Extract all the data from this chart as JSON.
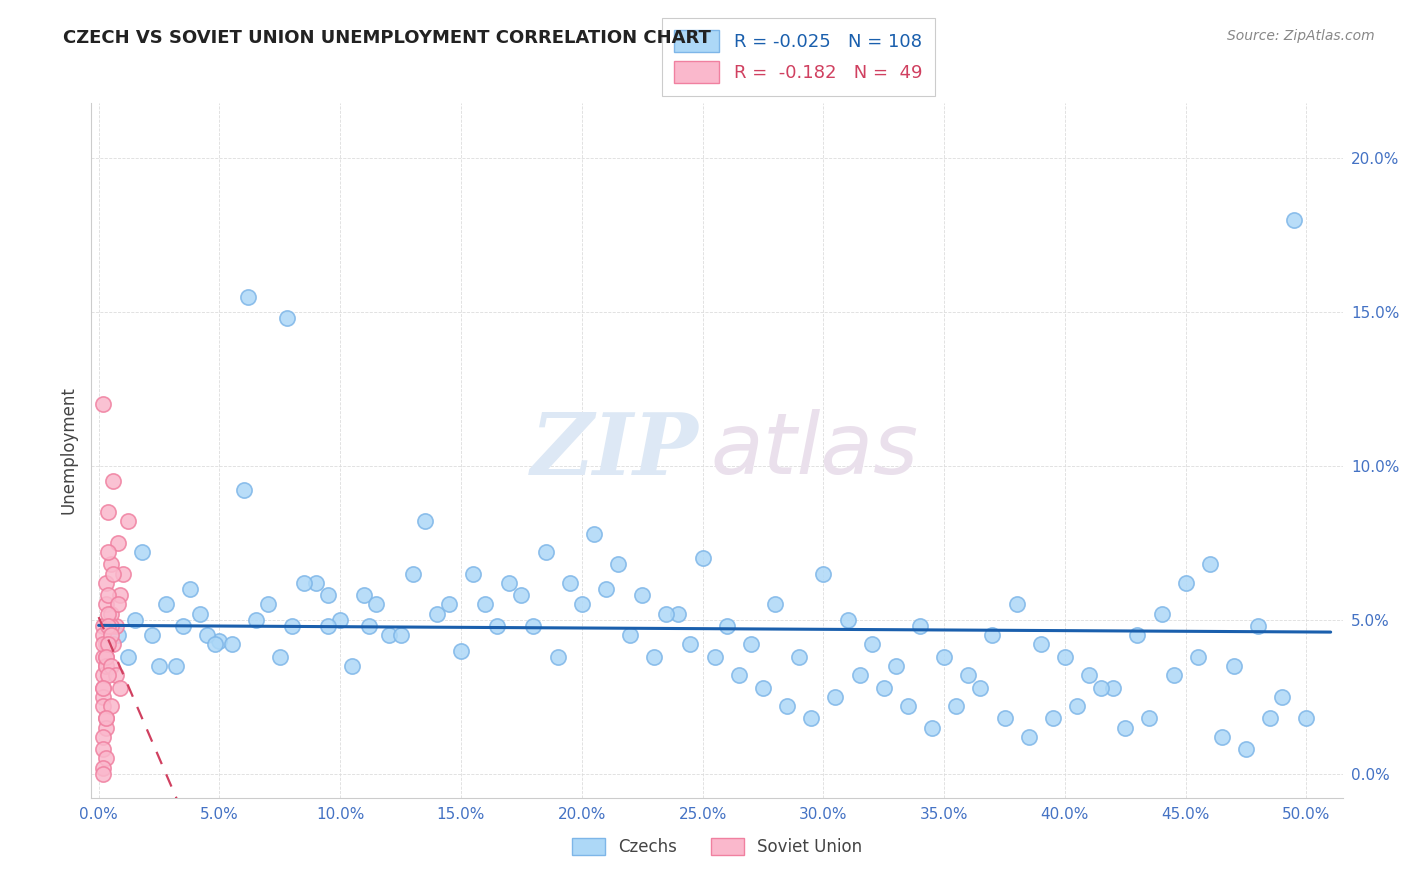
{
  "title": "CZECH VS SOVIET UNION UNEMPLOYMENT CORRELATION CHART",
  "source_text": "Source: ZipAtlas.com",
  "ylabel": "Unemployment",
  "xlim": [
    -0.003,
    0.515
  ],
  "ylim": [
    -0.008,
    0.218
  ],
  "xticks": [
    0.0,
    0.05,
    0.1,
    0.15,
    0.2,
    0.25,
    0.3,
    0.35,
    0.4,
    0.45,
    0.5
  ],
  "yticks": [
    0.0,
    0.05,
    0.1,
    0.15,
    0.2
  ],
  "czech_face_color": "#ADD8F7",
  "czech_edge_color": "#7EB6E8",
  "soviet_face_color": "#FAB8CC",
  "soviet_edge_color": "#F080A0",
  "czech_line_color": "#1A5FAD",
  "soviet_line_color": "#D04060",
  "legend_czech_label": "Czechs",
  "legend_soviet_label": "Soviet Union",
  "R_czech": -0.025,
  "N_czech": 108,
  "R_soviet": -0.182,
  "N_soviet": 49,
  "watermark_zip_color": "#E0E8F5",
  "watermark_atlas_color": "#E8E0E8",
  "background_color": "#ffffff",
  "grid_color": "#DDDDDD",
  "title_color": "#222222",
  "tick_label_color": "#4472C4",
  "axis_label_color": "#444444",
  "source_color": "#888888",
  "czech_x": [
    0.015,
    0.022,
    0.028,
    0.035,
    0.042,
    0.05,
    0.012,
    0.038,
    0.025,
    0.06,
    0.07,
    0.08,
    0.09,
    0.1,
    0.11,
    0.12,
    0.13,
    0.14,
    0.15,
    0.16,
    0.17,
    0.18,
    0.19,
    0.2,
    0.21,
    0.22,
    0.23,
    0.24,
    0.25,
    0.26,
    0.27,
    0.28,
    0.29,
    0.3,
    0.31,
    0.32,
    0.33,
    0.34,
    0.35,
    0.36,
    0.37,
    0.38,
    0.39,
    0.4,
    0.41,
    0.42,
    0.43,
    0.44,
    0.45,
    0.46,
    0.47,
    0.48,
    0.49,
    0.5,
    0.018,
    0.032,
    0.045,
    0.055,
    0.065,
    0.075,
    0.085,
    0.095,
    0.105,
    0.115,
    0.125,
    0.135,
    0.145,
    0.155,
    0.165,
    0.175,
    0.185,
    0.195,
    0.205,
    0.215,
    0.225,
    0.235,
    0.245,
    0.255,
    0.265,
    0.275,
    0.285,
    0.295,
    0.305,
    0.315,
    0.325,
    0.335,
    0.345,
    0.355,
    0.365,
    0.375,
    0.385,
    0.395,
    0.405,
    0.415,
    0.425,
    0.435,
    0.445,
    0.455,
    0.465,
    0.475,
    0.485,
    0.495,
    0.008,
    0.048,
    0.062,
    0.078,
    0.095,
    0.112
  ],
  "czech_y": [
    0.05,
    0.045,
    0.055,
    0.048,
    0.052,
    0.043,
    0.038,
    0.06,
    0.035,
    0.092,
    0.055,
    0.048,
    0.062,
    0.05,
    0.058,
    0.045,
    0.065,
    0.052,
    0.04,
    0.055,
    0.062,
    0.048,
    0.038,
    0.055,
    0.06,
    0.045,
    0.038,
    0.052,
    0.07,
    0.048,
    0.042,
    0.055,
    0.038,
    0.065,
    0.05,
    0.042,
    0.035,
    0.048,
    0.038,
    0.032,
    0.045,
    0.055,
    0.042,
    0.038,
    0.032,
    0.028,
    0.045,
    0.052,
    0.062,
    0.068,
    0.035,
    0.048,
    0.025,
    0.018,
    0.072,
    0.035,
    0.045,
    0.042,
    0.05,
    0.038,
    0.062,
    0.048,
    0.035,
    0.055,
    0.045,
    0.082,
    0.055,
    0.065,
    0.048,
    0.058,
    0.072,
    0.062,
    0.078,
    0.068,
    0.058,
    0.052,
    0.042,
    0.038,
    0.032,
    0.028,
    0.022,
    0.018,
    0.025,
    0.032,
    0.028,
    0.022,
    0.015,
    0.022,
    0.028,
    0.018,
    0.012,
    0.018,
    0.022,
    0.028,
    0.015,
    0.018,
    0.032,
    0.038,
    0.012,
    0.008,
    0.018,
    0.18,
    0.045,
    0.042,
    0.155,
    0.148,
    0.058,
    0.048
  ],
  "soviet_x": [
    0.002,
    0.004,
    0.006,
    0.008,
    0.01,
    0.012,
    0.003,
    0.005,
    0.007,
    0.009,
    0.002,
    0.004,
    0.006,
    0.003,
    0.005,
    0.002,
    0.004,
    0.006,
    0.008,
    0.003,
    0.005,
    0.002,
    0.004,
    0.003,
    0.002,
    0.004,
    0.003,
    0.002,
    0.005,
    0.003,
    0.002,
    0.004,
    0.002,
    0.003,
    0.005,
    0.007,
    0.009,
    0.002,
    0.004,
    0.003,
    0.002,
    0.003,
    0.005,
    0.002,
    0.003,
    0.002,
    0.003,
    0.002,
    0.002
  ],
  "soviet_y": [
    0.12,
    0.085,
    0.095,
    0.075,
    0.065,
    0.082,
    0.055,
    0.068,
    0.048,
    0.058,
    0.048,
    0.072,
    0.042,
    0.062,
    0.052,
    0.045,
    0.058,
    0.065,
    0.055,
    0.042,
    0.048,
    0.038,
    0.052,
    0.035,
    0.042,
    0.048,
    0.038,
    0.032,
    0.045,
    0.035,
    0.028,
    0.042,
    0.025,
    0.038,
    0.035,
    0.032,
    0.028,
    0.022,
    0.032,
    0.018,
    0.028,
    0.015,
    0.022,
    0.012,
    0.018,
    0.008,
    0.005,
    0.002,
    0.0
  ]
}
